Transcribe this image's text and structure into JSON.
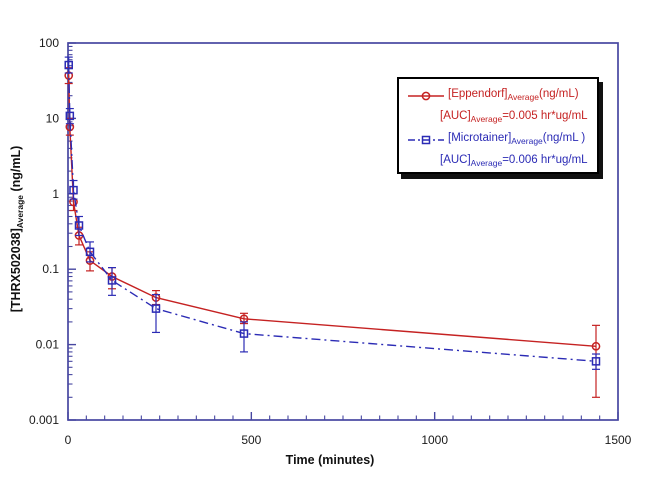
{
  "page": {
    "background": "#ffffff"
  },
  "axes": {
    "frame_color": "#4747a1",
    "text_color": "#1a1a1a",
    "x_title": "Time (minutes)",
    "y_title_main": "[THRX502038]",
    "y_title_sub": "Average",
    "y_title_unit": " (ng/mL)"
  },
  "legend": {
    "border_color": "#000000",
    "entries": [
      {
        "name": "[Eppendorf]",
        "sub": "Average",
        "unit": "(ng/mL)",
        "auc_label": "[AUC]",
        "auc_sub": "Average",
        "auc_value": "=0.005 hr*ug/mL",
        "color": "#c52222",
        "marker": "circle",
        "line": "solid"
      },
      {
        "name": "[Microtainer]",
        "sub": "Average",
        "unit": "(ng/mL )",
        "auc_label": "[AUC]",
        "auc_sub": "Average",
        "auc_value": "=0.006 hr*ug/mL",
        "color": "#2b2bb5",
        "marker": "square",
        "line": "dashdot"
      }
    ]
  },
  "chart_data": {
    "type": "line",
    "title": "",
    "xlabel": "Time (minutes)",
    "ylabel": "[THRX502038]Average (ng/mL)",
    "x_axis": {
      "min": 0,
      "max": 1500,
      "major_ticks": [
        {
          "value": 0,
          "label": "0"
        },
        {
          "value": 500,
          "label": "500"
        },
        {
          "value": 1000,
          "label": "1000"
        },
        {
          "value": 1500,
          "label": "1500"
        }
      ],
      "minor_step": 50
    },
    "y_axis": {
      "scale": "log",
      "min": 0.001,
      "max": 100,
      "major_ticks": [
        {
          "value": 100,
          "label": "100"
        },
        {
          "value": 10,
          "label": "10"
        },
        {
          "value": 1,
          "label": "1"
        },
        {
          "value": 0.1,
          "label": "0.1"
        },
        {
          "value": 0.01,
          "label": "0.01"
        },
        {
          "value": 0.001,
          "label": "0.001"
        }
      ]
    },
    "grid": false,
    "legend_position": "upper right",
    "x": [
      2,
      5,
      15,
      30,
      60,
      120,
      240,
      480,
      1440
    ],
    "series": [
      {
        "name": "Eppendorf",
        "auc": "0.005 hr*ug/mL",
        "color": "#c52222",
        "marker": "circle",
        "line": "solid",
        "values": [
          37,
          7.7,
          0.78,
          0.28,
          0.13,
          0.08,
          0.042,
          0.022,
          0.0095
        ],
        "err_lo": [
          29,
          6.0,
          0.6,
          0.21,
          0.095,
          0.055,
          0.034,
          0.019,
          0.002
        ],
        "err_hi": [
          47,
          10.0,
          1.0,
          0.36,
          0.17,
          0.105,
          0.052,
          0.026,
          0.018
        ]
      },
      {
        "name": "Microtainer",
        "auc": "0.006 hr*ug/mL",
        "color": "#2b2bb5",
        "marker": "square",
        "line": "dashdot",
        "values": [
          51,
          10.8,
          1.12,
          0.38,
          0.17,
          0.071,
          0.03,
          0.014,
          0.006
        ],
        "err_lo": [
          40,
          8.5,
          0.85,
          0.28,
          0.125,
          0.045,
          0.0145,
          0.008,
          0.0047
        ],
        "err_hi": [
          65,
          13.5,
          1.5,
          0.5,
          0.23,
          0.105,
          0.046,
          0.02,
          0.0075
        ]
      }
    ]
  }
}
